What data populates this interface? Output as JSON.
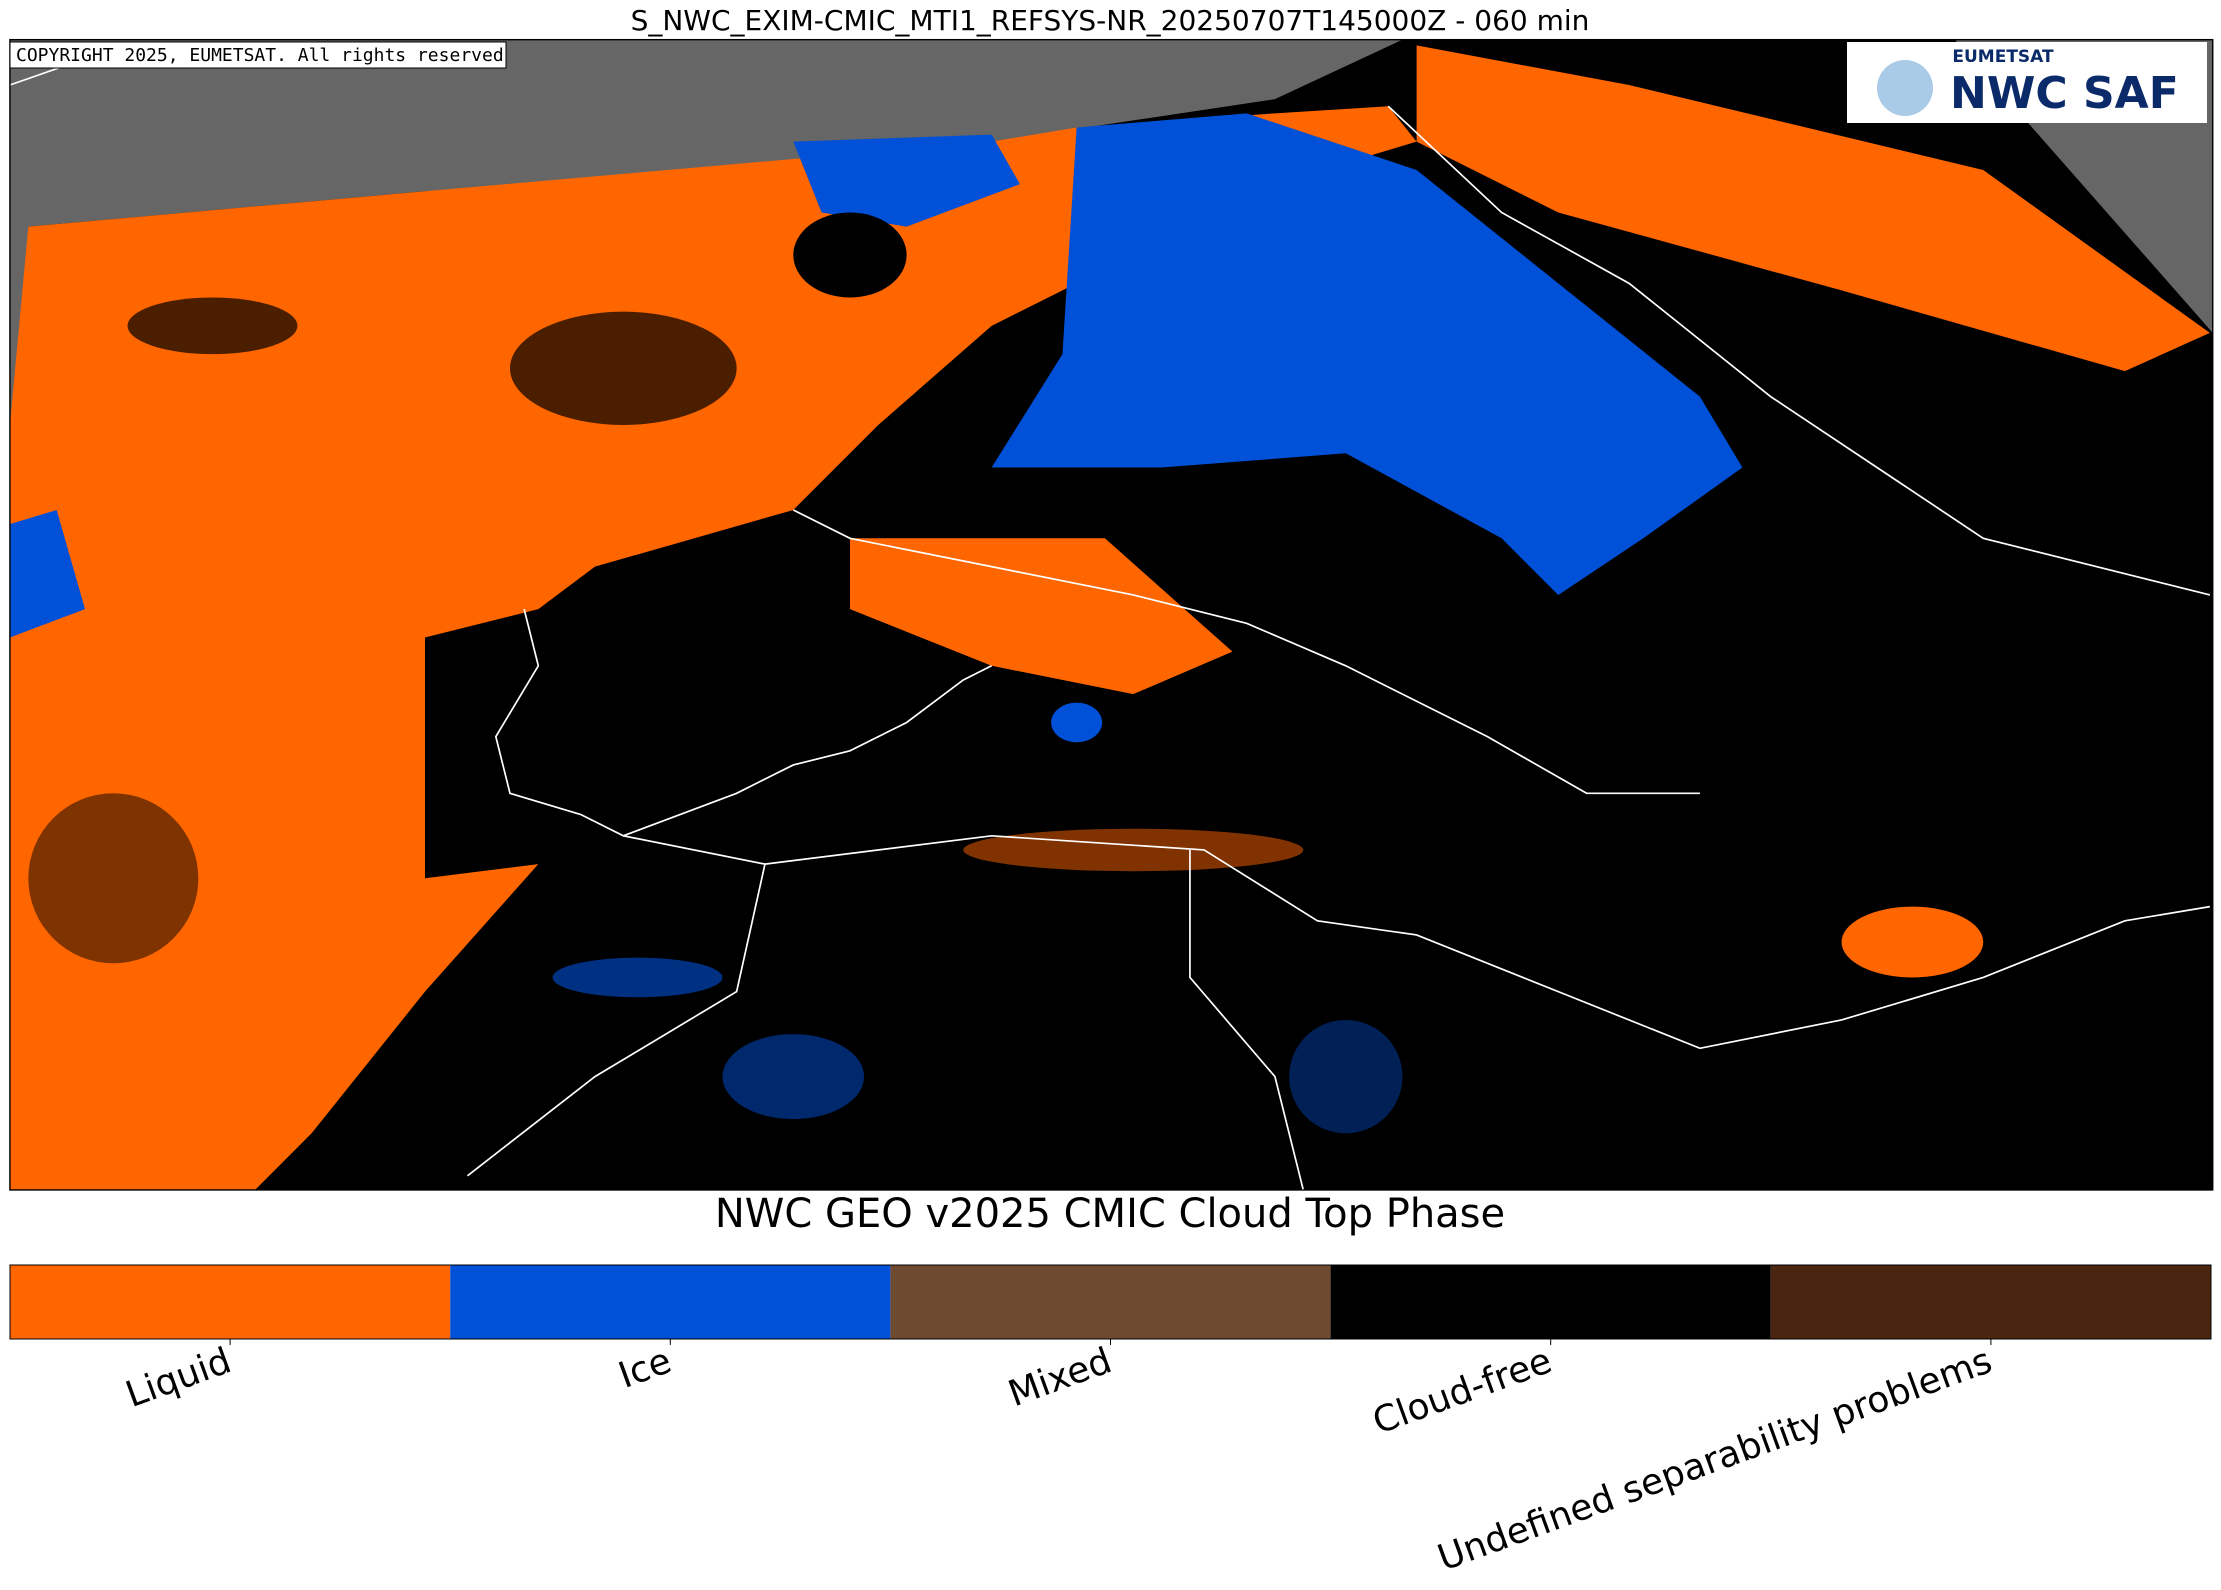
{
  "title": "S_NWC_EXIM-CMIC_MTI1_REFSYS-NR_20250707T145000Z - 060 min",
  "copyright": "COPYRIGHT 2025, EUMETSAT. All rights reserved",
  "logo": {
    "top": "EUMETSAT",
    "main": "NWC SAF"
  },
  "colorbar": {
    "title": "NWC GEO v2025 CMIC Cloud Top Phase",
    "categories": [
      {
        "label": "Liquid",
        "color": "#ff6600"
      },
      {
        "label": "Ice",
        "color": "#0050d8"
      },
      {
        "label": "Mixed",
        "color": "#6e4b30"
      },
      {
        "label": "Cloud-free",
        "color": "#000000"
      },
      {
        "label": "Undefined separability problems",
        "color": "#4a2610"
      }
    ]
  }
}
